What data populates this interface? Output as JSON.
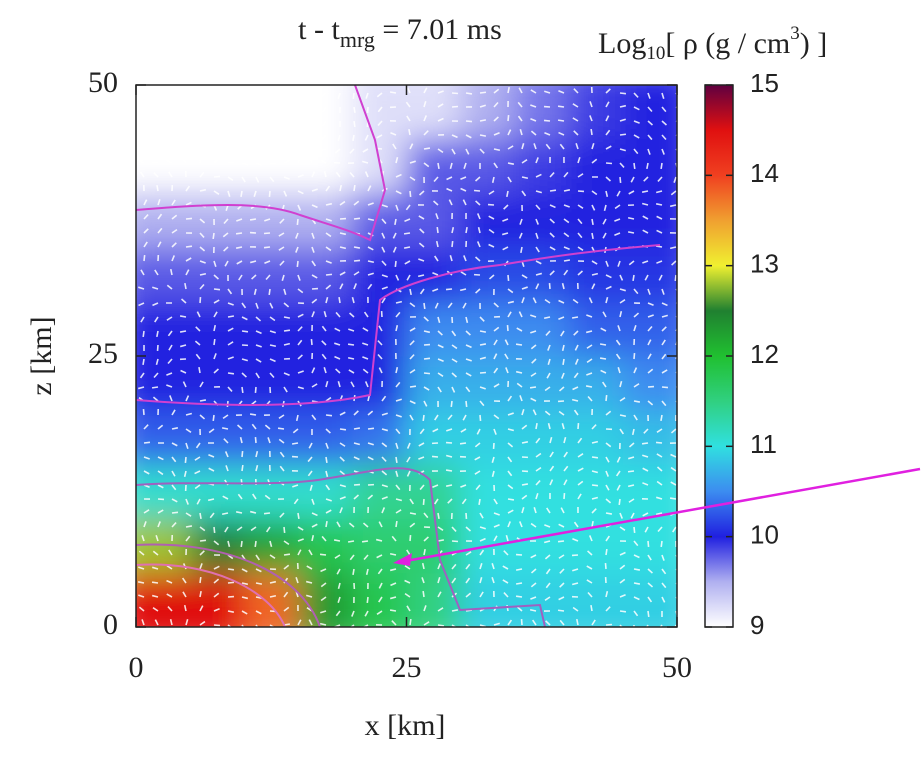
{
  "chart_data": {
    "type": "heatmap",
    "title": [
      "t - t",
      "mrg",
      " = 7.01 ms"
    ],
    "colorbar_label": [
      "Log",
      "10",
      "[ ρ (g / cm",
      "3",
      ") ]"
    ],
    "x_label": "x [km]",
    "y_label": "z [km]",
    "xlim": [
      0,
      50
    ],
    "ylim": [
      0,
      50
    ],
    "xticks": [
      0,
      25,
      50
    ],
    "yticks": [
      0,
      25,
      50
    ],
    "xbins": [
      0,
      5,
      10,
      15,
      20,
      25,
      30,
      35,
      40,
      45,
      50
    ],
    "ybins": [
      0,
      5,
      10,
      15,
      20,
      25,
      30,
      35,
      40,
      45,
      50
    ],
    "z": [
      [
        14.5,
        14.5,
        13.8,
        12.3,
        11.8,
        11.5,
        10.9,
        10.9,
        10.9,
        10.9
      ],
      [
        12.8,
        12.5,
        12.2,
        11.8,
        11.6,
        11.6,
        11.0,
        11.0,
        11.0,
        11.0
      ],
      [
        11.1,
        11.1,
        11.1,
        11.1,
        11.4,
        11.4,
        11.0,
        11.0,
        11.0,
        11.0
      ],
      [
        10.3,
        10.3,
        10.3,
        10.3,
        10.4,
        10.9,
        10.9,
        10.9,
        10.9,
        10.8
      ],
      [
        10.0,
        10.0,
        10.0,
        10.0,
        10.0,
        10.7,
        10.7,
        10.7,
        10.7,
        10.5
      ],
      [
        10.0,
        10.0,
        10.0,
        10.0,
        10.0,
        10.5,
        10.5,
        10.5,
        10.3,
        10.3
      ],
      [
        9.8,
        9.8,
        9.8,
        9.8,
        10.0,
        10.0,
        10.2,
        10.2,
        10.1,
        10.1
      ],
      [
        9.5,
        9.5,
        9.5,
        9.5,
        9.8,
        9.8,
        10.0,
        10.0,
        10.0,
        10.0
      ],
      [
        9.0,
        9.0,
        9.0,
        9.0,
        9.2,
        9.8,
        9.8,
        9.9,
        10.0,
        10.0
      ],
      [
        9.0,
        9.0,
        9.0,
        9.0,
        9.2,
        9.2,
        9.5,
        9.7,
        9.9,
        10.0
      ]
    ],
    "clim": [
      9,
      15
    ],
    "cticks": [
      9,
      10,
      11,
      12,
      13,
      14,
      15
    ],
    "colorscale": [
      [
        9,
        "#ffffff"
      ],
      [
        9.5,
        "#b0b0f0"
      ],
      [
        10,
        "#2020e0"
      ],
      [
        10.5,
        "#3c8cf0"
      ],
      [
        11,
        "#30e0e0"
      ],
      [
        11.5,
        "#30d080"
      ],
      [
        12,
        "#20c030"
      ],
      [
        12.5,
        "#208030"
      ],
      [
        13,
        "#f0f030"
      ],
      [
        13.5,
        "#f0a030"
      ],
      [
        14,
        "#f04020"
      ],
      [
        14.5,
        "#e01010"
      ],
      [
        15,
        "#600040"
      ]
    ]
  }
}
